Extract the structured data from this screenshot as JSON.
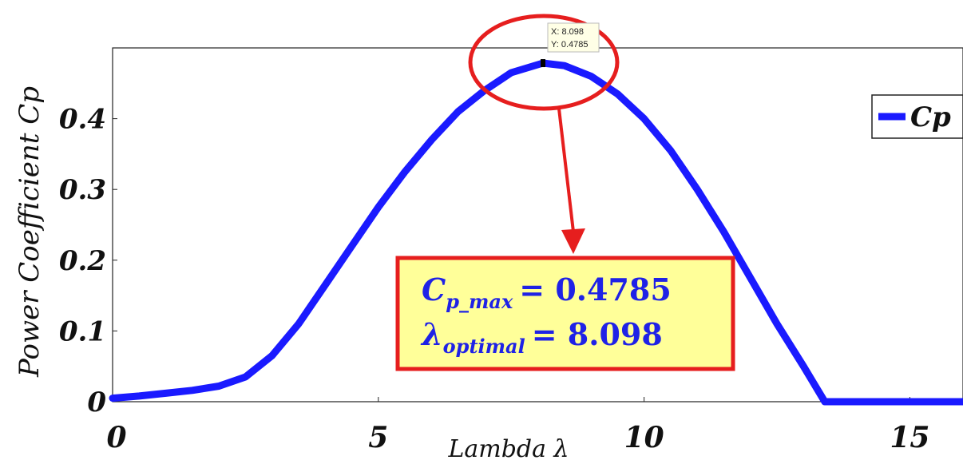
{
  "chart_data": {
    "type": "line",
    "xlabel": "Lambda λ",
    "ylabel": "Power Coefficient Cp",
    "xlim": [
      0,
      16
    ],
    "ylim": [
      0,
      0.5
    ],
    "xticks": [
      0,
      5,
      10,
      15
    ],
    "xtick_labels": [
      "0",
      "5",
      "10",
      "15"
    ],
    "yticks": [
      0,
      0.1,
      0.2,
      0.3,
      0.4
    ],
    "ytick_labels": [
      "0",
      "0.1",
      "0.2",
      "0.3",
      "0.4"
    ],
    "grid": true,
    "legend_position": "top-right",
    "series": [
      {
        "name": "Cp",
        "color": "#1a1aff",
        "x": [
          0,
          0.5,
          1.0,
          1.5,
          2.0,
          2.5,
          3.0,
          3.5,
          4.0,
          4.5,
          5.0,
          5.5,
          6.0,
          6.5,
          7.0,
          7.5,
          8.098,
          8.5,
          9.0,
          9.5,
          10.0,
          10.5,
          11.0,
          11.5,
          12.0,
          12.5,
          13.0,
          13.4,
          14.0,
          15.0,
          16.0
        ],
        "y": [
          0.005,
          0.008,
          0.012,
          0.016,
          0.022,
          0.035,
          0.065,
          0.11,
          0.165,
          0.22,
          0.275,
          0.325,
          0.37,
          0.41,
          0.44,
          0.465,
          0.4785,
          0.475,
          0.46,
          0.435,
          0.4,
          0.355,
          0.3,
          0.24,
          0.175,
          0.11,
          0.05,
          0.0,
          0.0,
          0.0,
          0.0
        ]
      }
    ],
    "datatip": {
      "x": 8.098,
      "y": 0.4785,
      "x_text": "X: 8.098",
      "y_text": "Y: 0.4785"
    },
    "annotation_box": {
      "line1_symbol": "C",
      "line1_sub": "p_max",
      "line1_value": "= 0.4785",
      "line2_symbol": "λ",
      "line2_sub": "optimal",
      "line2_value": "= 8.098",
      "fill_color": "#ffff99",
      "border_color": "#e61e1e",
      "text_color": "#1f22e6"
    },
    "highlight_color": "#e61e1e"
  }
}
